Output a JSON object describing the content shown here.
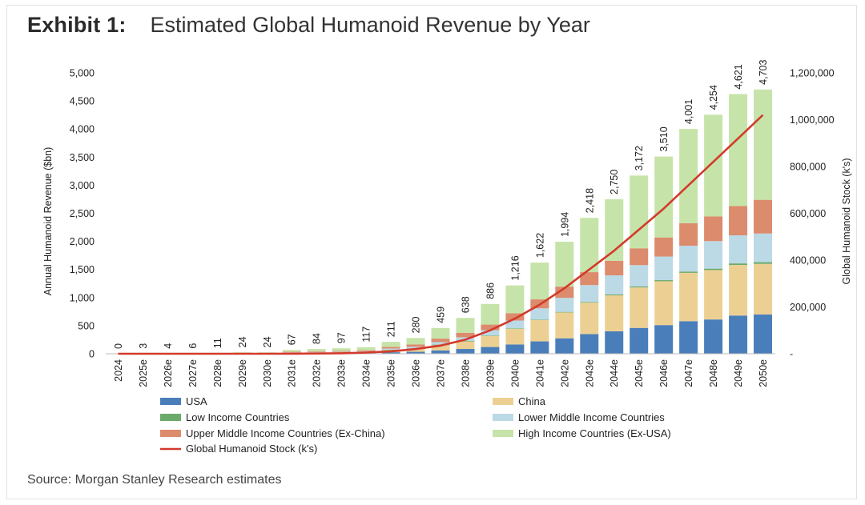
{
  "header": {
    "exhibit": "Exhibit 1:",
    "title": "Estimated Global Humanoid Revenue by Year"
  },
  "source": "Source: Morgan Stanley Research estimates",
  "chart_data": {
    "type": "bar",
    "stacked": true,
    "categories": [
      "2024",
      "2025e",
      "2026e",
      "2027e",
      "2028e",
      "2029e",
      "2030e",
      "2031e",
      "2032e",
      "2033e",
      "2034e",
      "2035e",
      "2036e",
      "2037e",
      "2038e",
      "2039e",
      "2040e",
      "2041e",
      "2042e",
      "2043e",
      "2044e",
      "2045e",
      "2046e",
      "2047e",
      "2048e",
      "2049e",
      "2050e"
    ],
    "totals": [
      0,
      3,
      4,
      6,
      11,
      24,
      24,
      67,
      84,
      97,
      117,
      211,
      280,
      459,
      638,
      886,
      1216,
      1622,
      1994,
      2418,
      2750,
      3172,
      3510,
      4001,
      4254,
      4621,
      4703
    ],
    "total_labels": [
      "0",
      "3",
      "4",
      "6",
      "11",
      "24",
      "24",
      "67",
      "84",
      "97",
      "117",
      "211",
      "280",
      "459",
      "638",
      "886",
      "1,216",
      "1,622",
      "1,994",
      "2,418",
      "2,750",
      "3,172",
      "3,510",
      "4,001",
      "4,254",
      "4,621",
      "4,703"
    ],
    "series": [
      {
        "name": "USA",
        "color": "#4a7eba",
        "values": [
          0,
          0,
          0,
          1,
          1,
          3,
          3,
          8,
          10,
          11,
          13,
          27,
          35,
          60,
          85,
          120,
          165,
          220,
          275,
          350,
          400,
          460,
          510,
          580,
          610,
          680,
          700
        ]
      },
      {
        "name": "China",
        "color": "#ecd093",
        "values": [
          0,
          0,
          0,
          1,
          2,
          5,
          5,
          12,
          16,
          18,
          22,
          45,
          60,
          100,
          140,
          200,
          280,
          380,
          460,
          560,
          640,
          720,
          780,
          860,
          880,
          900,
          900
        ]
      },
      {
        "name": "Low Income Countries",
        "color": "#6aaa6a",
        "values": [
          0,
          0,
          0,
          0,
          0,
          0,
          0,
          0,
          0,
          0,
          0,
          1,
          1,
          2,
          3,
          4,
          6,
          8,
          10,
          12,
          15,
          17,
          20,
          23,
          25,
          28,
          30
        ]
      },
      {
        "name": "Lower Middle Income Countries",
        "color": "#bcd9e6",
        "values": [
          0,
          0,
          0,
          0,
          1,
          2,
          2,
          5,
          7,
          8,
          10,
          20,
          28,
          45,
          65,
          95,
          140,
          200,
          250,
          300,
          340,
          380,
          420,
          460,
          490,
          500,
          510
        ]
      },
      {
        "name": "Upper Middle Income Countries (Ex-China)",
        "color": "#dc8b6c",
        "values": [
          0,
          1,
          1,
          1,
          2,
          4,
          4,
          10,
          12,
          14,
          17,
          30,
          40,
          62,
          80,
          100,
          130,
          160,
          200,
          230,
          260,
          300,
          340,
          400,
          440,
          520,
          600
        ]
      },
      {
        "name": "High Income Countries (Ex-USA)",
        "color": "#c6e4a9",
        "values": [
          0,
          2,
          3,
          3,
          5,
          10,
          10,
          32,
          39,
          46,
          55,
          88,
          116,
          190,
          265,
          367,
          495,
          654,
          799,
          966,
          1095,
          1295,
          1440,
          1678,
          1809,
          1993,
          1963
        ]
      }
    ],
    "line_series": {
      "name": "Global Humanoid Stock (k's)",
      "color": "#d33a2c",
      "axis": "right",
      "values": [
        0,
        0,
        0,
        0,
        0,
        0,
        100,
        300,
        1000,
        2000,
        5000,
        10000,
        20000,
        35000,
        60000,
        100000,
        150000,
        210000,
        280000,
        360000,
        440000,
        530000,
        620000,
        720000,
        820000,
        920000,
        1020000
      ]
    },
    "y_left": {
      "label": "Annual Humanoid Revenue ($bn)",
      "min": 0,
      "max": 5000,
      "ticks": [
        "0",
        "500",
        "1,000",
        "1,500",
        "2,000",
        "2,500",
        "3,000",
        "3,500",
        "4,000",
        "4,500",
        "5,000"
      ]
    },
    "y_right": {
      "label": "Global Humanoid Stock (k's)",
      "min": 0,
      "max": 1200000,
      "ticks": [
        "-",
        "200,000",
        "400,000",
        "600,000",
        "800,000",
        "1,000,000",
        "1,200,000"
      ]
    },
    "legend_placement": "bottom",
    "grid": false
  }
}
